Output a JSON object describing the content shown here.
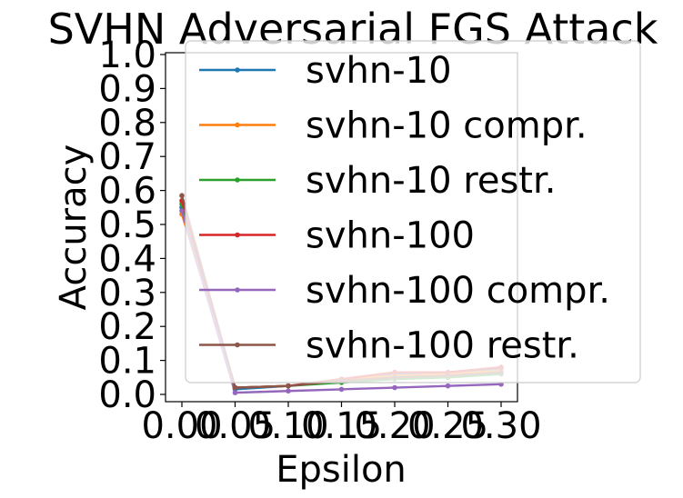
{
  "chart_data": {
    "type": "line",
    "title": "SVHN Adversarial FGS Attack",
    "xlabel": "Epsilon",
    "ylabel": "Accuracy",
    "xlim": [
      0.0,
      0.3
    ],
    "ylim": [
      0.0,
      1.0
    ],
    "x": [
      0.0,
      0.05,
      0.1,
      0.15,
      0.2,
      0.25,
      0.3
    ],
    "x_tick_labels": [
      "0.00",
      "0.05",
      "0.10",
      "0.15",
      "0.20",
      "0.25",
      "0.30"
    ],
    "y_tick_labels": [
      "0.0",
      "0.1",
      "0.2",
      "0.3",
      "0.4",
      "0.5",
      "0.6",
      "0.7",
      "0.8",
      "0.9",
      "1.0"
    ],
    "grid": false,
    "legend_position": "upper-right",
    "series": [
      {
        "name": "svhn-10",
        "color": "#1f77b4",
        "values": [
          0.55,
          0.015,
          0.025,
          0.04,
          0.06,
          0.065,
          0.075
        ]
      },
      {
        "name": "svhn-10 compr.",
        "color": "#ff7f0e",
        "values": [
          0.53,
          0.02,
          0.025,
          0.045,
          0.055,
          0.06,
          0.07
        ]
      },
      {
        "name": "svhn-10 restr.",
        "color": "#2ca02c",
        "values": [
          0.56,
          0.02,
          0.025,
          0.035,
          0.045,
          0.05,
          0.06
        ]
      },
      {
        "name": "svhn-100",
        "color": "#d62728",
        "values": [
          0.57,
          0.02,
          0.025,
          0.045,
          0.065,
          0.065,
          0.08
        ]
      },
      {
        "name": "svhn-100 compr.",
        "color": "#9467bd",
        "values": [
          0.54,
          0.005,
          0.01,
          0.015,
          0.02,
          0.025,
          0.03
        ]
      },
      {
        "name": "svhn-100 restr.",
        "color": "#8c564b",
        "values": [
          0.585,
          0.02,
          0.025,
          0.04,
          0.05,
          0.055,
          0.065
        ]
      }
    ]
  }
}
